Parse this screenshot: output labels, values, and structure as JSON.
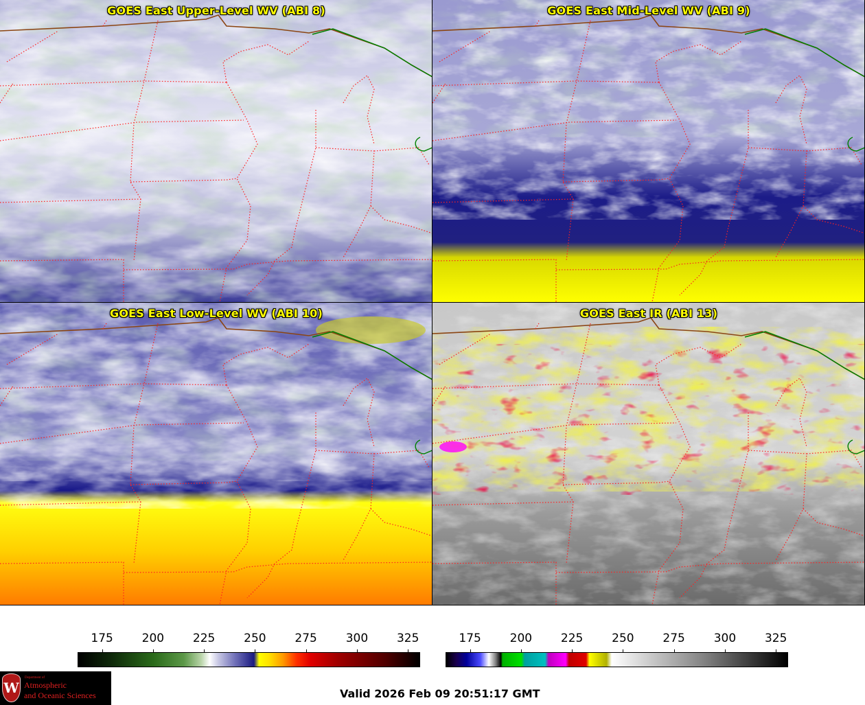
{
  "panels": [
    {
      "id": "upper",
      "title": "GOES East Upper-Level WV (ABI 8)"
    },
    {
      "id": "mid",
      "title": "GOES East Mid-Level WV (ABI 9)"
    },
    {
      "id": "low",
      "title": "GOES East Low-Level WV (ABI 10)"
    },
    {
      "id": "ir",
      "title": "GOES East IR (ABI 13)"
    }
  ],
  "colorbars": {
    "wv": {
      "ticks": [
        "175",
        "200",
        "225",
        "250",
        "275",
        "300",
        "325"
      ],
      "range": [
        163,
        331
      ]
    },
    "ir": {
      "ticks": [
        "175",
        "200",
        "225",
        "250",
        "275",
        "300",
        "325"
      ],
      "range": [
        163,
        331
      ]
    }
  },
  "logo": {
    "dept": "Department of",
    "line1": "Atmospheric",
    "line2": "and Oceanic Sciences",
    "crest": "W"
  },
  "valid_time": "Valid 2026 Feb 09 20:51:17 GMT",
  "colors": {
    "state_borders": "#ff2020",
    "country_border": "#8b4513",
    "lake_border": "#008000",
    "title_text": "#ffff00"
  }
}
